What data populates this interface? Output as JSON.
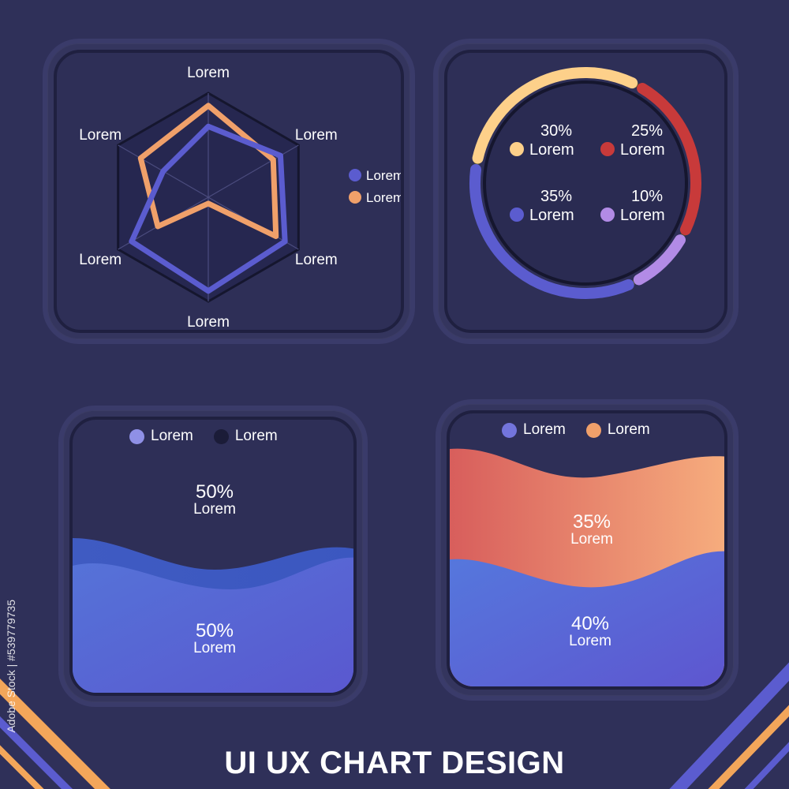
{
  "title": "UI UX CHART DESIGN",
  "watermark": "Adobe Stock | #539779735",
  "colors": {
    "background": "#2f3059",
    "blue": "#5b5ccf",
    "orange": "#f0a06a",
    "red": "#c83a3a",
    "yellow": "#fdd08a",
    "purple": "#b28be6",
    "dark": "#1b1c38"
  },
  "chart_data": [
    {
      "type": "radar",
      "axes": [
        "Lorem",
        "Lorem",
        "Lorem",
        "Lorem",
        "Lorem",
        "Lorem"
      ],
      "series": [
        {
          "name": "Lorem",
          "color": "#5b5ccf",
          "values": [
            0.68,
            0.8,
            0.85,
            0.9,
            0.85,
            0.5
          ]
        },
        {
          "name": "Lorem",
          "color": "#f0a06a",
          "values": [
            0.88,
            0.72,
            0.75,
            0.06,
            0.56,
            0.75
          ]
        }
      ],
      "legend": "right"
    },
    {
      "type": "pie",
      "style": "donut",
      "slices": [
        {
          "name": "Lorem",
          "percent": "30%",
          "value": 30,
          "color": "#fdd08a"
        },
        {
          "name": "Lorem",
          "percent": "25%",
          "value": 25,
          "color": "#c83a3a"
        },
        {
          "name": "Lorem",
          "percent": "10%",
          "value": 10,
          "color": "#b28be6"
        },
        {
          "name": "Lorem",
          "percent": "35%",
          "value": 35,
          "color": "#5b5ccf"
        }
      ]
    },
    {
      "type": "area",
      "legend": [
        {
          "name": "Lorem",
          "color": "#8f90e6"
        },
        {
          "name": "Lorem",
          "color": "#1b1c38"
        }
      ],
      "series": [
        {
          "name": "Lorem",
          "value": 50,
          "percent": "50%"
        },
        {
          "name": "Lorem",
          "value": 50,
          "percent": "50%"
        }
      ]
    },
    {
      "type": "area",
      "legend": [
        {
          "name": "Lorem",
          "color": "#7375dc"
        },
        {
          "name": "Lorem",
          "color": "#f0a06a"
        }
      ],
      "series": [
        {
          "name": "Lorem",
          "value": 35,
          "percent": "35%"
        },
        {
          "name": "Lorem",
          "value": 40,
          "percent": "40%"
        }
      ]
    }
  ]
}
